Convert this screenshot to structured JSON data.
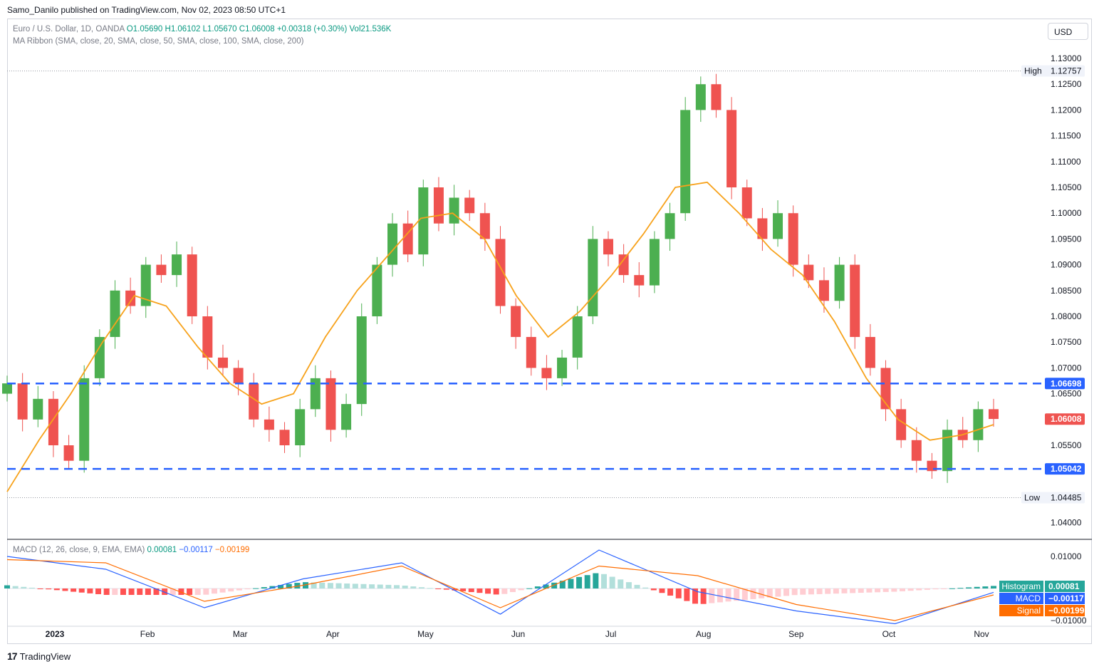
{
  "publisher_line": "Samo_Danilo published on TradingView.com, Nov 02, 2023 08:50 UTC+1",
  "legend": {
    "symbol": "Euro / U.S. Dollar, 1D, OANDA",
    "open": "O1.05690",
    "high": "H1.06102",
    "low": "L1.05670",
    "close": "C1.06008",
    "change": "+0.00318 (+0.30%)",
    "volume": "Vol21.536K",
    "ma_ribbon": "MA Ribbon (SMA, close, 20, SMA, close, 50, SMA, close, 100, SMA, close, 200)"
  },
  "currency_button": "USD",
  "macd_legend": {
    "title": "MACD (12, 26, close, 9, EMA, EMA)",
    "hist": "0.00081",
    "macd": "−0.00117",
    "signal": "−0.00199"
  },
  "footer": {
    "brand": "TradingView",
    "logo": "17"
  },
  "colors": {
    "up": "#4caf50",
    "down": "#ef5350",
    "ma20": "#f7a21b",
    "level_line": "#2962ff",
    "macd_line": "#2962ff",
    "signal_line": "#ff6d00",
    "hist_up": "#26a69a",
    "hist_up_weak": "#b2dfdb",
    "hist_down": "#ff5252",
    "hist_down_weak": "#ffcdd2",
    "dot_orange": "#f57c00",
    "dot_red": "#d32f2f",
    "dot_teal": "#26a69a"
  },
  "chart_data": [
    {
      "type": "candlestick",
      "title": "Euro / U.S. Dollar, 1D, OANDA",
      "xlabel": "",
      "ylabel": "",
      "x_ticks": [
        "2023",
        "Feb",
        "Mar",
        "Apr",
        "May",
        "Jun",
        "Jul",
        "Aug",
        "Sep",
        "Oct",
        "Nov"
      ],
      "y_ticks": [
        "1.13000",
        "1.12500",
        "1.12000",
        "1.11500",
        "1.11000",
        "1.10500",
        "1.10000",
        "1.09500",
        "1.09000",
        "1.08500",
        "1.08000",
        "1.07500",
        "1.07000",
        "1.06500",
        "1.06000",
        "1.05500",
        "1.05000",
        "1.04500",
        "1.04000"
      ],
      "ylim": [
        1.0375,
        1.1325
      ],
      "grid": false,
      "series": [
        {
          "name": "EUR/USD daily closes",
          "x": [
            "Dec",
            "Dec",
            "Dec",
            "Jan",
            "Jan",
            "Jan",
            "Jan",
            "Jan",
            "Jan",
            "Jan",
            "Jan",
            "Feb",
            "Feb",
            "Feb",
            "Feb",
            "Feb",
            "Feb",
            "Feb",
            "Mar",
            "Mar",
            "Mar",
            "Mar",
            "Mar",
            "Mar",
            "Apr",
            "Apr",
            "Apr",
            "Apr",
            "Apr",
            "Apr",
            "May",
            "May",
            "May",
            "May",
            "May",
            "May",
            "Jun",
            "Jun",
            "Jun",
            "Jun",
            "Jun",
            "Jul",
            "Jul",
            "Jul",
            "Jul",
            "Jul",
            "Jul",
            "Aug",
            "Aug",
            "Aug",
            "Aug",
            "Aug",
            "Aug",
            "Sep",
            "Sep",
            "Sep",
            "Sep",
            "Sep",
            "Oct",
            "Oct",
            "Oct",
            "Oct",
            "Oct",
            "Oct",
            "Nov"
          ],
          "values": [
            1.067,
            1.06,
            1.064,
            1.055,
            1.052,
            1.068,
            1.076,
            1.085,
            1.082,
            1.09,
            1.088,
            1.092,
            1.08,
            1.072,
            1.07,
            1.067,
            1.06,
            1.058,
            1.055,
            1.062,
            1.068,
            1.058,
            1.063,
            1.08,
            1.09,
            1.098,
            1.092,
            1.105,
            1.098,
            1.103,
            1.1,
            1.095,
            1.082,
            1.076,
            1.07,
            1.068,
            1.072,
            1.08,
            1.095,
            1.092,
            1.088,
            1.086,
            1.095,
            1.1,
            1.12,
            1.125,
            1.12,
            1.105,
            1.099,
            1.095,
            1.1,
            1.09,
            1.087,
            1.083,
            1.09,
            1.076,
            1.07,
            1.062,
            1.056,
            1.052,
            1.05,
            1.058,
            1.056,
            1.062,
            1.0601
          ]
        },
        {
          "name": "MA Ribbon SMA 20",
          "x": [
            "Dec",
            "Jan",
            "Jan",
            "Jan",
            "Feb",
            "Feb",
            "Feb",
            "Mar",
            "Mar",
            "Mar",
            "Apr",
            "Apr",
            "Apr",
            "May",
            "May",
            "May",
            "Jun",
            "Jun",
            "Jun",
            "Jul",
            "Jul",
            "Jul",
            "Aug",
            "Aug",
            "Aug",
            "Sep",
            "Sep",
            "Sep",
            "Oct",
            "Oct",
            "Oct",
            "Nov"
          ],
          "values": [
            1.046,
            1.056,
            1.065,
            1.075,
            1.084,
            1.082,
            1.074,
            1.067,
            1.063,
            1.065,
            1.076,
            1.085,
            1.092,
            1.099,
            1.1,
            1.095,
            1.084,
            1.076,
            1.081,
            1.088,
            1.096,
            1.105,
            1.106,
            1.1,
            1.093,
            1.088,
            1.079,
            1.068,
            1.06,
            1.056,
            1.057,
            1.059
          ]
        }
      ],
      "levels": [
        {
          "label": "",
          "value": "1.06698"
        },
        {
          "label": "",
          "value": "1.05042"
        },
        {
          "label": "High",
          "value": "1.12757"
        },
        {
          "label": "Low",
          "value": "1.04485"
        }
      ],
      "last_price": "1.06008"
    },
    {
      "type": "line",
      "title": "MACD (12, 26, close, 9, EMA, EMA)",
      "xlabel": "",
      "ylabel": "",
      "y_ticks": [
        "0.01000",
        "0.00000",
        "−0.01000"
      ],
      "ylim": [
        -0.0115,
        0.0125
      ],
      "series": [
        {
          "name": "MACD",
          "x": [
            "Jan",
            "Feb",
            "Mar",
            "Apr",
            "May",
            "Jun",
            "Jul",
            "Aug",
            "Sep",
            "Oct",
            "Nov"
          ],
          "values": [
            0.01,
            0.006,
            -0.006,
            0.003,
            0.008,
            -0.008,
            0.012,
            -0.001,
            -0.007,
            -0.011,
            -0.0012
          ]
        },
        {
          "name": "Signal",
          "x": [
            "Jan",
            "Feb",
            "Mar",
            "Apr",
            "May",
            "Jun",
            "Jul",
            "Aug",
            "Sep",
            "Oct",
            "Nov"
          ],
          "values": [
            0.009,
            0.008,
            -0.004,
            0.001,
            0.007,
            -0.006,
            0.007,
            0.004,
            -0.005,
            -0.01,
            -0.002
          ]
        }
      ],
      "labels": [
        {
          "label": "Histogram",
          "value": "0.00081"
        },
        {
          "label": "MACD",
          "value": "−0.00117"
        },
        {
          "label": "Signal",
          "value": "−0.00199"
        }
      ]
    }
  ]
}
